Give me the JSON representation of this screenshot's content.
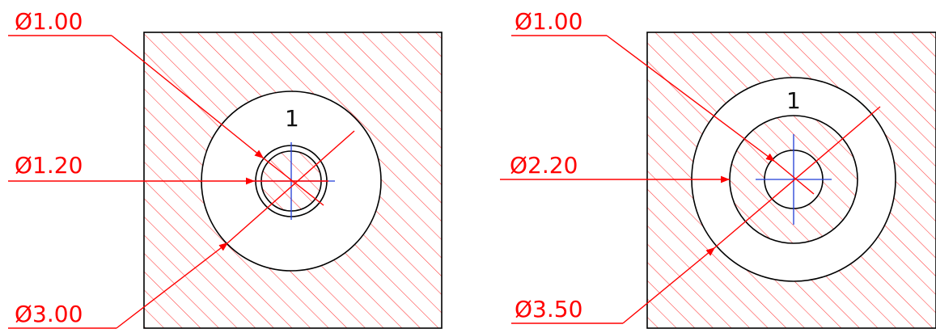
{
  "colors": {
    "annotation": "#ff0000",
    "outline": "#000000",
    "centerline": "#1f3bd6",
    "background": "#ffffff"
  },
  "views": [
    {
      "id": "left",
      "section_label": "1",
      "dimensions": [
        {
          "id": "d1",
          "text": "Ø1.00"
        },
        {
          "id": "d2",
          "text": "Ø1.20"
        },
        {
          "id": "d3",
          "text": "Ø3.00"
        }
      ]
    },
    {
      "id": "right",
      "section_label": "1",
      "dimensions": [
        {
          "id": "d1",
          "text": "Ø1.00"
        },
        {
          "id": "d2",
          "text": "Ø2.20"
        },
        {
          "id": "d3",
          "text": "Ø3.50"
        }
      ]
    }
  ]
}
